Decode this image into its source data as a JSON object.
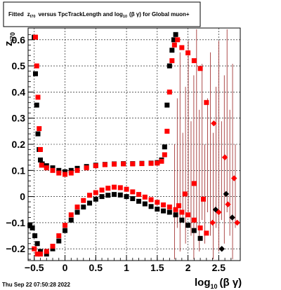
{
  "chart_data": {
    "type": "scatter",
    "title": {
      "prefix": "Fitted",
      "z_main": "z",
      "z_sub": "I70",
      "middle": "versus TpcTrackLength and log",
      "log_sub": "10",
      "suffix": "(β γ) for Global muon+"
    },
    "xlabel": {
      "main": "log",
      "sub": "10",
      "rest": "(β γ)"
    },
    "ylabel": {
      "main": "z",
      "sub": "I70"
    },
    "xlim": [
      -0.6,
      2.85
    ],
    "ylim": [
      -0.245,
      0.645
    ],
    "xticks": [
      -0.5,
      0,
      0.5,
      1,
      1.5,
      2,
      2.5
    ],
    "xtick_labels": [
      "−0.5",
      "0",
      "0.5",
      "1",
      "1.5",
      "2",
      "2.5"
    ],
    "yticks": [
      -0.2,
      -0.1,
      0,
      0.1,
      0.2,
      0.3,
      0.4,
      0.5,
      0.6
    ],
    "ytick_labels": [
      "−0.2",
      "−0.1",
      "0",
      "0.1",
      "0.2",
      "0.3",
      "0.4",
      "0.5",
      "0.6"
    ],
    "grid": true,
    "series": [
      {
        "color": "#000000",
        "marker": "square",
        "points": [
          [
            -0.5,
            0.61
          ],
          [
            -0.48,
            0.47
          ],
          [
            -0.46,
            0.35
          ],
          [
            -0.44,
            0.24
          ],
          [
            -0.42,
            0.18
          ],
          [
            -0.4,
            0.14
          ],
          [
            -0.37,
            0.125
          ],
          [
            -0.3,
            0.118
          ],
          [
            -0.2,
            0.11
          ],
          [
            -0.1,
            0.1
          ],
          [
            0.0,
            0.095
          ],
          [
            0.1,
            0.1
          ],
          [
            0.2,
            0.108
          ],
          [
            0.35,
            0.115
          ],
          [
            0.5,
            0.12
          ],
          [
            0.65,
            0.123
          ],
          [
            0.8,
            0.125
          ],
          [
            0.95,
            0.126
          ],
          [
            1.1,
            0.126
          ],
          [
            1.25,
            0.127
          ],
          [
            1.4,
            0.128
          ],
          [
            1.5,
            0.13
          ],
          [
            1.57,
            0.14
          ],
          [
            1.62,
            0.19
          ],
          [
            1.66,
            0.35
          ],
          [
            1.7,
            0.5
          ],
          [
            1.74,
            0.56
          ],
          [
            1.77,
            0.6
          ],
          [
            1.8,
            0.62
          ],
          [
            -0.57,
            -0.11
          ],
          [
            -0.53,
            -0.12
          ],
          [
            -0.49,
            -0.15
          ],
          [
            -0.45,
            -0.18
          ],
          [
            -0.4,
            -0.21
          ],
          [
            -0.3,
            -0.22
          ],
          [
            -0.2,
            -0.2
          ],
          [
            -0.1,
            -0.17
          ],
          [
            0.0,
            -0.13
          ],
          [
            0.1,
            -0.09
          ],
          [
            0.2,
            -0.06
          ],
          [
            0.3,
            -0.04
          ],
          [
            0.4,
            -0.025
          ],
          [
            0.5,
            -0.01
          ],
          [
            0.6,
            0.0
          ],
          [
            0.7,
            0.005
          ],
          [
            0.8,
            0.008
          ],
          [
            0.9,
            0.006
          ],
          [
            1.0,
            0.0
          ],
          [
            1.1,
            -0.008
          ],
          [
            1.2,
            -0.018
          ],
          [
            1.3,
            -0.028
          ],
          [
            1.4,
            -0.038
          ],
          [
            1.5,
            -0.048
          ],
          [
            1.6,
            -0.055
          ],
          [
            1.7,
            -0.06
          ],
          [
            1.8,
            -0.07
          ],
          [
            1.9,
            -0.09
          ],
          [
            2.0,
            -0.11
          ],
          [
            2.1,
            -0.13
          ],
          [
            2.2,
            -0.16
          ],
          [
            2.45,
            -0.05
          ],
          [
            2.62,
            0.01
          ],
          [
            2.72,
            -0.08
          ],
          [
            2.55,
            -0.2
          ]
        ]
      },
      {
        "color": "#ff0000",
        "marker": "square",
        "points": [
          [
            -0.48,
            0.61
          ],
          [
            -0.46,
            0.5
          ],
          [
            -0.44,
            0.38
          ],
          [
            -0.42,
            0.26
          ],
          [
            -0.4,
            0.18
          ],
          [
            -0.38,
            0.12
          ],
          [
            -0.3,
            0.11
          ],
          [
            -0.2,
            0.1
          ],
          [
            -0.1,
            0.09
          ],
          [
            0.0,
            0.085
          ],
          [
            0.1,
            0.09
          ],
          [
            0.2,
            0.1
          ],
          [
            0.35,
            0.11
          ],
          [
            0.5,
            0.118
          ],
          [
            0.65,
            0.122
          ],
          [
            0.8,
            0.124
          ],
          [
            0.95,
            0.125
          ],
          [
            1.1,
            0.125
          ],
          [
            1.25,
            0.126
          ],
          [
            1.4,
            0.127
          ],
          [
            1.5,
            0.128
          ],
          [
            1.57,
            0.135
          ],
          [
            1.62,
            0.16
          ],
          [
            1.66,
            0.25
          ],
          [
            1.7,
            0.4
          ],
          [
            1.74,
            0.52
          ],
          [
            1.78,
            0.58
          ],
          [
            1.83,
            0.6
          ],
          [
            1.9,
            0.57
          ],
          [
            2.0,
            0.55
          ],
          [
            2.1,
            0.52
          ],
          [
            2.2,
            0.49
          ],
          [
            2.3,
            0.36
          ],
          [
            2.42,
            0.28
          ],
          [
            2.6,
            0.15
          ],
          [
            2.75,
            0.07
          ],
          [
            -0.5,
            -0.2
          ],
          [
            -0.45,
            -0.22
          ],
          [
            -0.4,
            -0.22
          ],
          [
            -0.3,
            -0.21
          ],
          [
            -0.2,
            -0.19
          ],
          [
            -0.1,
            -0.15
          ],
          [
            0.0,
            -0.11
          ],
          [
            0.1,
            -0.07
          ],
          [
            0.2,
            -0.04
          ],
          [
            0.3,
            -0.015
          ],
          [
            0.4,
            0.005
          ],
          [
            0.5,
            0.015
          ],
          [
            0.6,
            0.025
          ],
          [
            0.7,
            0.032
          ],
          [
            0.8,
            0.036
          ],
          [
            0.9,
            0.034
          ],
          [
            1.0,
            0.028
          ],
          [
            1.1,
            0.018
          ],
          [
            1.2,
            0.008
          ],
          [
            1.3,
            -0.002
          ],
          [
            1.4,
            -0.012
          ],
          [
            1.5,
            -0.022
          ],
          [
            1.6,
            -0.032
          ],
          [
            1.7,
            -0.04
          ],
          [
            1.8,
            -0.05
          ],
          [
            1.9,
            -0.06
          ],
          [
            2.0,
            -0.07
          ],
          [
            2.1,
            -0.09
          ],
          [
            2.2,
            -0.12
          ],
          [
            2.3,
            -0.14
          ],
          [
            2.4,
            -0.1
          ],
          [
            2.5,
            -0.06
          ],
          [
            2.65,
            -0.03
          ],
          [
            2.8,
            -0.1
          ],
          [
            2.25,
            -0.01
          ],
          [
            2.1,
            0.05
          ],
          [
            1.95,
            0.01
          ],
          [
            1.85,
            -0.035
          ]
        ]
      }
    ],
    "error_bars": {
      "color": "#8b0000",
      "x_from": 1.78,
      "x_to": 2.78,
      "step": 0.045
    }
  },
  "footer": {
    "timestamp": "Thu Sep 22 07:50:28 2022"
  }
}
